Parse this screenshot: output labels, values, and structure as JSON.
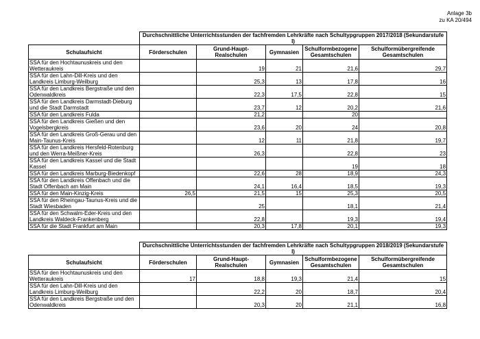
{
  "header": {
    "line1": "Anlage 3b",
    "line2": "zu KA 20/494"
  },
  "tables": [
    {
      "title": "Durchschnittliche Unterrichtsstunden der fachfremden Lehrkräfte nach Schultypgruppen 2017/2018 (Sekundarstufe I)",
      "columns": [
        "Schulaufsicht",
        "Förderschulen",
        "Grund-Haupt-Realschulen",
        "Gymnasien",
        "Schulformbezogene Gesamtschulen",
        "Schulformübergreifende Gesamtschulen"
      ],
      "rows": [
        [
          "SSA für den Hochtaunuskreis und den Wetteraukreis",
          null,
          "19",
          "21",
          "21,6",
          "29,7"
        ],
        [
          "SSA für den Lahn-Dill-Kreis und den Landkreis Limburg-Weilburg",
          null,
          "25,3",
          "13",
          "17,8",
          "16"
        ],
        [
          "SSA für den Landkreis Bergstraße und den Odenwaldkreis",
          null,
          "22,3",
          "17,5",
          "22,8",
          "15"
        ],
        [
          "SSA für den Landkreis Darmstadt-Dieburg und die Stadt Darmstadt",
          null,
          "23,7",
          "12",
          "20,2",
          "21,6"
        ],
        [
          "SSA für den Landkreis Fulda",
          null,
          "21,2",
          null,
          "20",
          null
        ],
        [
          "SSA für den Landkreis Gießen und den Vogelsbergkreis",
          null,
          "23,6",
          "20",
          "24",
          "20,8"
        ],
        [
          "SSA für den Landkreis Groß-Gerau und den Main-Taunus-Kreis",
          null,
          "12",
          "11",
          "21,8",
          "19,7"
        ],
        [
          "SSA für den Landkreis Hersfeld-Rotenburg und den Werra-Meißner-Kreis",
          null,
          "26,3",
          null,
          "22,8",
          "23"
        ],
        [
          "SSA für den Landkreis Kassel und die Stadt Kassel",
          null,
          null,
          null,
          "19",
          "18"
        ],
        [
          "SSA für den Landkreis Marburg-Biedenkopf",
          null,
          "22,6",
          "28",
          "18,9",
          "24,3"
        ],
        [
          "SSA für den Landkreis Offenbach und die Stadt Offenbach am Main",
          null,
          "24,1",
          "16,4",
          "18,5",
          "19,3"
        ],
        [
          "SSA für den Main-Kinzig-Kreis",
          "26,5",
          "21,5",
          "15",
          "25,3",
          "20,5"
        ],
        [
          "SSA für den Rheingau-Taunus-Kreis und die Stadt Wiesbaden",
          null,
          "25",
          null,
          "18,1",
          "21,4"
        ],
        [
          "SSA für den Schwalm-Eder-Kreis und den Landkreis Waldeck-Frankenberg",
          null,
          "22,8",
          null,
          "19,3",
          "19,4"
        ],
        [
          "SSA für die Stadt Frankfurt am Main",
          null,
          "20,3",
          "17,8",
          "20,1",
          "19,3"
        ]
      ]
    },
    {
      "title": "Durchschnittliche Unterrichtsstunden der fachfremden Lehrkräfte nach Schultypgruppen 2018/2019 (Sekundarstufe I)",
      "columns": [
        "Schulaufsicht",
        "Förderschulen",
        "Grund-Haupt-Realschulen",
        "Gymnasien",
        "Schulformbezogene Gesamtschulen",
        "Schulformübergreifende Gesamtschulen"
      ],
      "rows": [
        [
          "SSA für den Hochtaunuskreis und den Wetteraukreis",
          "17",
          "18,8",
          "19,3",
          "21,4",
          "15"
        ],
        [
          "SSA für den Lahn-Dill-Kreis und den Landkreis Limburg-Weilburg",
          null,
          "22,2",
          "20",
          "18,7",
          "20,4"
        ],
        [
          "SSA für den Landkreis Bergstraße und den Odenwaldkreis",
          null,
          "20,3",
          "20",
          "21,1",
          "16,8"
        ]
      ]
    }
  ]
}
